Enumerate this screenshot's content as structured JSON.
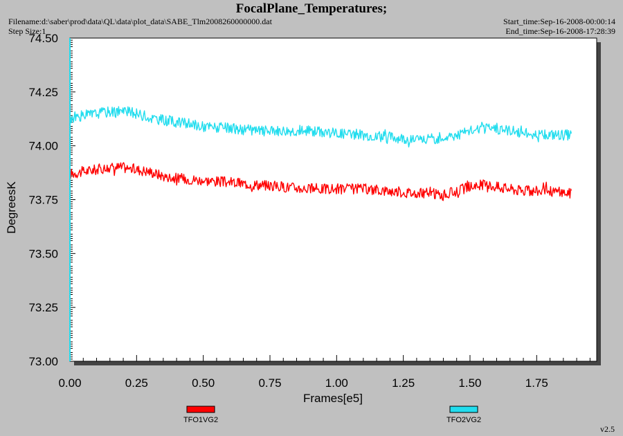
{
  "header": {
    "title": "FocalPlane_Temperatures;",
    "filename": "Filename:d:\\saber\\prod\\data\\QL\\data\\plot_data\\SABE_Tlm2008260000000.dat",
    "step_size": "Step Size:1",
    "start_time": "Start_time:Sep-16-2008-00:00:14",
    "end_time": "End_time:Sep-16-2008-17:28:39"
  },
  "footer": {
    "version": "v2.5"
  },
  "colors": {
    "background": "#c0c0c0",
    "plot_area": "#ffffff",
    "series_1": "#ff0000",
    "series_2": "#22ddee"
  },
  "chart_data": {
    "type": "line",
    "title": "FocalPlane_Temperatures;",
    "xlabel": "Frames[e5]",
    "ylabel": "DegreesK",
    "xlim": [
      0,
      1.975
    ],
    "ylim": [
      73.0,
      74.5
    ],
    "x_ticks": [
      "0.00",
      "0.25",
      "0.50",
      "0.75",
      "1.00",
      "1.25",
      "1.50",
      "1.75"
    ],
    "y_ticks": [
      "73.00",
      "73.25",
      "73.50",
      "73.75",
      "74.00",
      "74.25",
      "74.50"
    ],
    "grid": false,
    "legend_position": "bottom",
    "noise_band": 0.025,
    "series": [
      {
        "name": "TFO1VG2",
        "color": "#ff0000",
        "x": [
          0.0,
          0.05,
          0.1,
          0.15,
          0.2,
          0.25,
          0.3,
          0.35,
          0.4,
          0.5,
          0.6,
          0.7,
          0.8,
          0.9,
          1.0,
          1.1,
          1.2,
          1.3,
          1.35,
          1.4,
          1.45,
          1.5,
          1.55,
          1.6,
          1.65,
          1.7,
          1.8,
          1.88
        ],
        "y": [
          73.87,
          73.88,
          73.89,
          73.9,
          73.9,
          73.89,
          73.88,
          73.86,
          73.85,
          73.84,
          73.83,
          73.82,
          73.81,
          73.8,
          73.8,
          73.8,
          73.79,
          73.78,
          73.78,
          73.77,
          73.79,
          73.81,
          73.82,
          73.81,
          73.8,
          73.79,
          73.79,
          73.78
        ]
      },
      {
        "name": "TFO2VG2",
        "color": "#22ddee",
        "x": [
          0.0,
          0.05,
          0.1,
          0.15,
          0.2,
          0.25,
          0.3,
          0.35,
          0.4,
          0.5,
          0.6,
          0.7,
          0.8,
          0.9,
          1.0,
          1.1,
          1.2,
          1.3,
          1.35,
          1.4,
          1.45,
          1.5,
          1.55,
          1.6,
          1.65,
          1.7,
          1.8,
          1.88
        ],
        "y": [
          74.13,
          74.14,
          74.15,
          74.16,
          74.16,
          74.15,
          74.13,
          74.12,
          74.11,
          74.09,
          74.08,
          74.07,
          74.07,
          74.07,
          74.06,
          74.05,
          74.04,
          74.03,
          74.03,
          74.04,
          74.05,
          74.07,
          74.08,
          74.08,
          74.07,
          74.06,
          74.05,
          74.05
        ]
      }
    ]
  }
}
